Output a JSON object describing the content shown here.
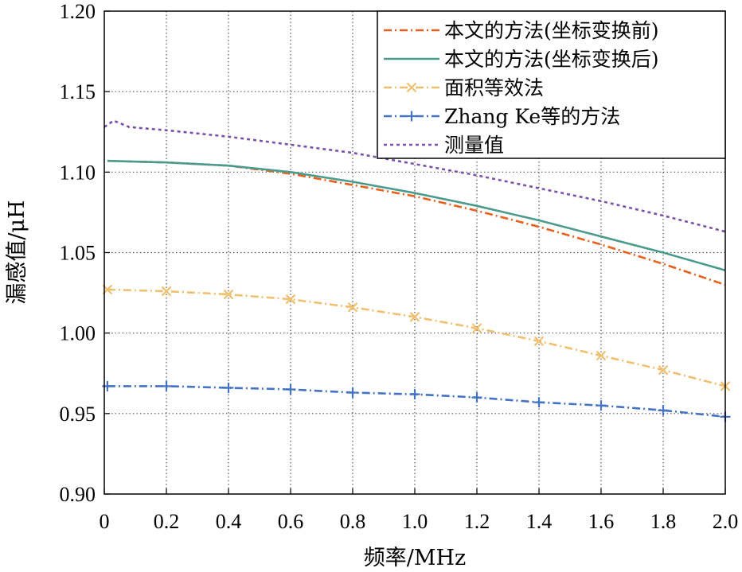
{
  "chart_data": {
    "type": "line",
    "title": "",
    "xlabel": "频率/MHz",
    "ylabel": "漏感值/μH",
    "xlim": [
      0,
      2.0
    ],
    "ylim": [
      0.9,
      1.2
    ],
    "xticks": [
      0,
      0.2,
      0.4,
      0.6,
      0.8,
      1.0,
      1.2,
      1.4,
      1.6,
      1.8,
      2.0
    ],
    "xtick_labels": [
      "0",
      "0.2",
      "0.4",
      "0.6",
      "0.8",
      "1.0",
      "1.2",
      "1.4",
      "1.6",
      "1.8",
      "2.0"
    ],
    "yticks": [
      0.9,
      0.95,
      1.0,
      1.05,
      1.1,
      1.15,
      1.2
    ],
    "ytick_labels": [
      "0.90",
      "0.95",
      "1.00",
      "1.05",
      "1.10",
      "1.15",
      "1.20"
    ],
    "grid": true,
    "legend_position": "top-right",
    "series": [
      {
        "name": "本文的方法(坐标变换前)",
        "color": "#e8601c",
        "style": "dashdot",
        "marker": "none",
        "x": [
          0.01,
          0.2,
          0.4,
          0.6,
          0.8,
          1.0,
          1.2,
          1.4,
          1.6,
          1.8,
          2.0
        ],
        "y": [
          1.107,
          1.106,
          1.104,
          1.099,
          1.092,
          1.085,
          1.076,
          1.066,
          1.055,
          1.043,
          1.03
        ]
      },
      {
        "name": "本文的方法(坐标变换后)",
        "color": "#4a9a8e",
        "style": "solid",
        "marker": "none",
        "x": [
          0.01,
          0.2,
          0.4,
          0.6,
          0.8,
          1.0,
          1.2,
          1.4,
          1.6,
          1.8,
          2.0
        ],
        "y": [
          1.107,
          1.106,
          1.104,
          1.1,
          1.094,
          1.087,
          1.079,
          1.07,
          1.06,
          1.05,
          1.039
        ]
      },
      {
        "name": "面积等效法",
        "color": "#f0c070",
        "style": "dashdot",
        "marker": "x",
        "x": [
          0.01,
          0.2,
          0.4,
          0.6,
          0.8,
          1.0,
          1.2,
          1.4,
          1.6,
          1.8,
          2.0
        ],
        "y": [
          1.027,
          1.026,
          1.024,
          1.021,
          1.016,
          1.01,
          1.003,
          0.995,
          0.986,
          0.977,
          0.967
        ]
      },
      {
        "name": "Zhang Ke等的方法",
        "color": "#4472c4",
        "style": "dashdot",
        "marker": "+",
        "x": [
          0.01,
          0.2,
          0.4,
          0.6,
          0.8,
          1.0,
          1.2,
          1.4,
          1.6,
          1.8,
          2.0
        ],
        "y": [
          0.967,
          0.967,
          0.966,
          0.965,
          0.963,
          0.962,
          0.96,
          0.957,
          0.955,
          0.952,
          0.948
        ]
      },
      {
        "name": "测量值",
        "color": "#7b52ab",
        "style": "dotted",
        "marker": "none",
        "x": [
          0.0,
          0.03,
          0.08,
          0.2,
          0.4,
          0.6,
          0.8,
          1.0,
          1.2,
          1.4,
          1.6,
          1.8,
          2.0
        ],
        "y": [
          1.128,
          1.132,
          1.128,
          1.126,
          1.122,
          1.117,
          1.112,
          1.105,
          1.098,
          1.09,
          1.082,
          1.073,
          1.063
        ]
      }
    ]
  }
}
